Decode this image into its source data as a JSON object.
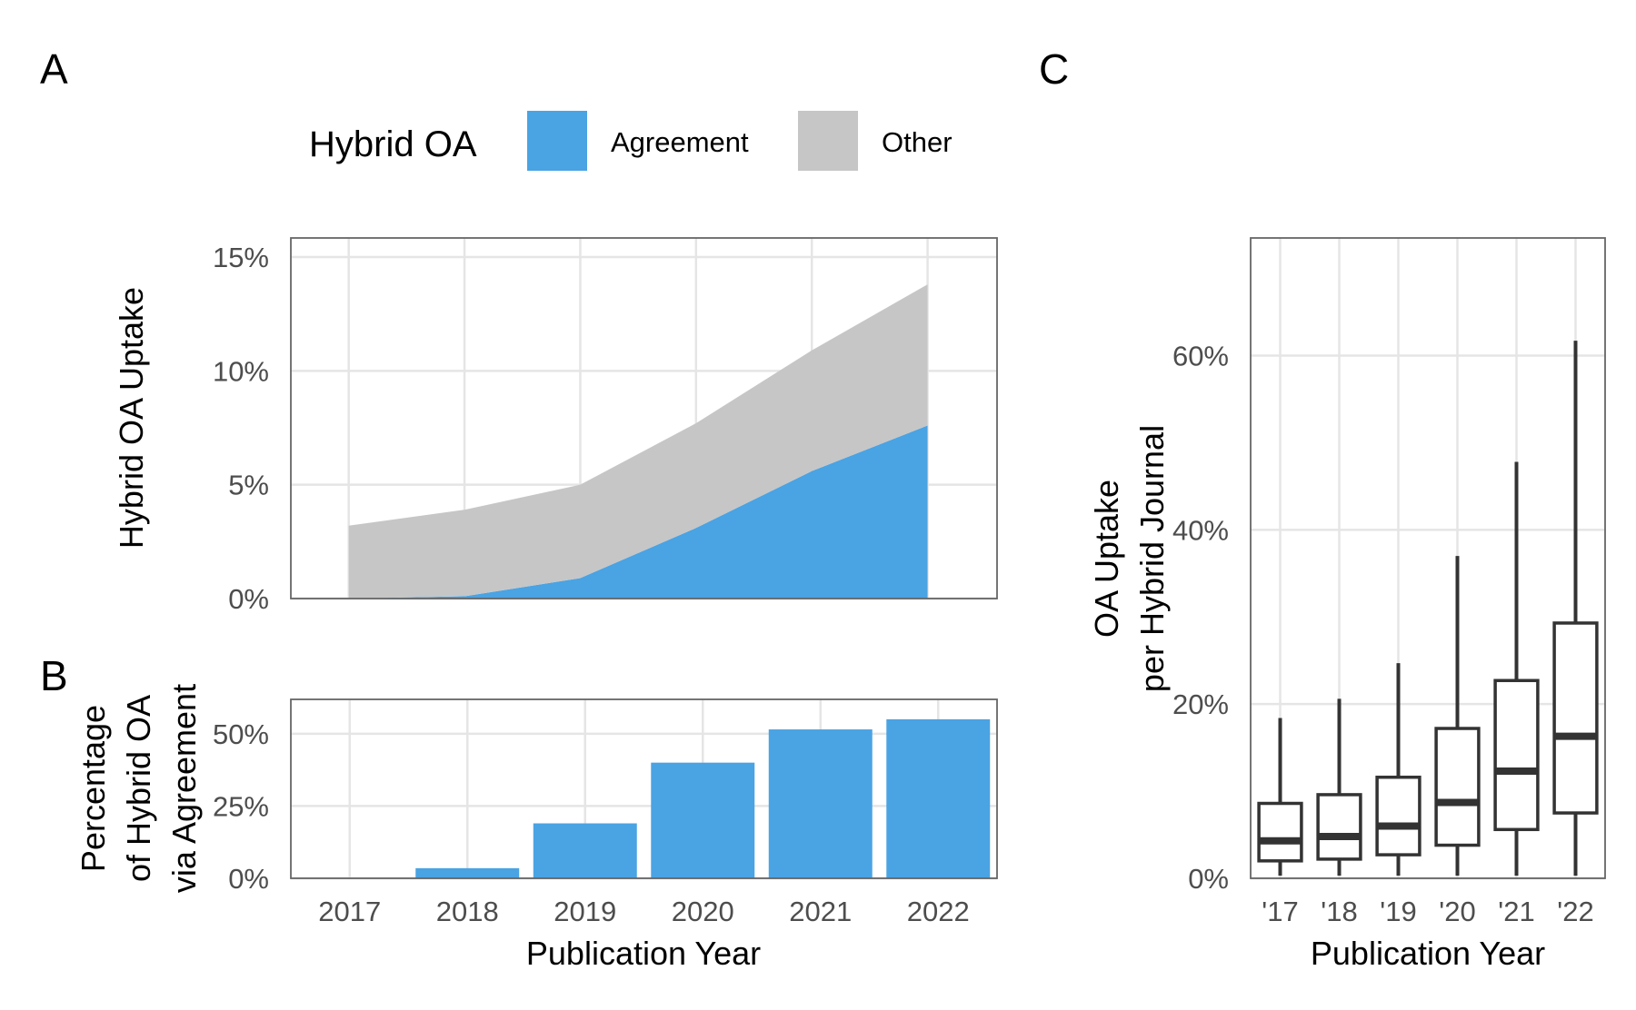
{
  "panel_labels": {
    "a": "A",
    "b": "B",
    "c": "C"
  },
  "legend": {
    "title": "Hybrid OA",
    "items": [
      {
        "label": "Agreement",
        "color": "#4aa3e3"
      },
      {
        "label": "Other",
        "color": "#c6c6c6"
      }
    ]
  },
  "chart_data": [
    {
      "type": "area",
      "panel": "A",
      "stacked": true,
      "x": [
        2017,
        2018,
        2019,
        2020,
        2021,
        2022
      ],
      "series": [
        {
          "name": "Agreement",
          "color": "#4aa3e3",
          "values": [
            0.0,
            0.1,
            0.9,
            3.1,
            5.6,
            7.6
          ]
        },
        {
          "name": "Other",
          "color": "#c6c6c6",
          "values": [
            3.2,
            3.8,
            4.1,
            4.6,
            5.3,
            6.2
          ]
        }
      ],
      "xlabel": "",
      "ylabel": "Hybrid OA Uptake",
      "ylim": [
        0,
        15
      ],
      "yticks": [
        0,
        5,
        10,
        15
      ],
      "ytick_labels": [
        "0%",
        "5%",
        "10%",
        "15%"
      ],
      "grid": true
    },
    {
      "type": "bar",
      "panel": "B",
      "categories": [
        "2017",
        "2018",
        "2019",
        "2020",
        "2021",
        "2022"
      ],
      "values": [
        0,
        3.5,
        19,
        40,
        51.5,
        55
      ],
      "color": "#4aa3e3",
      "xlabel": "Publication Year",
      "ylabel_lines": [
        "Percentage",
        "of Hybrid OA",
        "via Agreement"
      ],
      "ylim": [
        0,
        60
      ],
      "yticks": [
        0,
        25,
        50
      ],
      "ytick_labels": [
        "0%",
        "25%",
        "50%"
      ],
      "grid": true
    },
    {
      "type": "box",
      "panel": "C",
      "categories": [
        "'17",
        "'18",
        "'19",
        "'20",
        "'21",
        "'22"
      ],
      "boxes": [
        {
          "whisker_low": 0.3,
          "q1": 2.0,
          "median": 4.3,
          "q3": 8.6,
          "whisker_high": 18.4
        },
        {
          "whisker_low": 0.3,
          "q1": 2.2,
          "median": 4.8,
          "q3": 9.6,
          "whisker_high": 20.6
        },
        {
          "whisker_low": 0.3,
          "q1": 2.7,
          "median": 6.0,
          "q3": 11.6,
          "whisker_high": 24.7
        },
        {
          "whisker_low": 0.3,
          "q1": 3.8,
          "median": 8.7,
          "q3": 17.2,
          "whisker_high": 37.0
        },
        {
          "whisker_low": 0.3,
          "q1": 5.6,
          "median": 12.3,
          "q3": 22.7,
          "whisker_high": 47.8
        },
        {
          "whisker_low": 0.3,
          "q1": 7.5,
          "median": 16.3,
          "q3": 29.3,
          "whisker_high": 61.7
        }
      ],
      "xlabel": "Publication Year",
      "ylabel_lines": [
        "OA Uptake",
        "per Hybrid Journal"
      ],
      "ylim": [
        0,
        73.5
      ],
      "yticks": [
        0,
        20,
        40,
        60
      ],
      "ytick_labels": [
        "0%",
        "20%",
        "40%",
        "60%"
      ],
      "grid": true
    }
  ]
}
